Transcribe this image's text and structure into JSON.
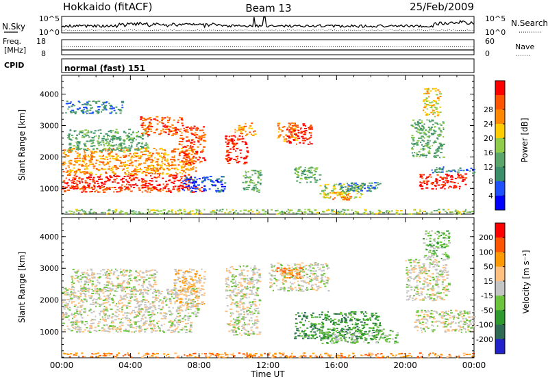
{
  "header": {
    "station": "Hokkaido (fitACF)",
    "beam": "Beam 13",
    "date": "25/Feb/2009"
  },
  "noise_panel": {
    "left_label": "N.Sky",
    "right_label": "N.Search",
    "left_ticks": [
      "10^5",
      "10^0"
    ],
    "right_ticks": [
      "10^5",
      "10^0"
    ],
    "scale": "log"
  },
  "freq_panel": {
    "left_label_1": "Freq.",
    "left_label_2": "[MHz]",
    "left_ticks": [
      "18",
      "8"
    ],
    "right_label": "Nave",
    "right_ticks": [
      "60",
      "0"
    ]
  },
  "cpid_panel": {
    "label": "CPID",
    "value": "normal (fast) 151"
  },
  "chart_data": [
    {
      "type": "heatmap",
      "name": "power",
      "ylabel": "Slant Range [km]",
      "ylim": [
        180,
        4600
      ],
      "xlim": [
        0,
        24
      ],
      "y_ticks": [
        1000,
        2000,
        3000,
        4000
      ],
      "colorbar": {
        "label": "Power [dB]",
        "ticks": [
          "4",
          "8",
          "12",
          "16",
          "20",
          "24",
          "28"
        ],
        "colors": [
          "#0000ff",
          "#1f50ff",
          "#3a8f6a",
          "#5aa66a",
          "#8fcc4a",
          "#ffcc00",
          "#ff8800",
          "#ff5500",
          "#ff0000"
        ]
      },
      "blobs": [
        {
          "t0": 0.0,
          "t1": 7.5,
          "r0": 1000,
          "r1": 1450,
          "c": 8
        },
        {
          "t0": 0.0,
          "t1": 8.2,
          "r0": 900,
          "r1": 1050,
          "c": 7
        },
        {
          "t0": 0.0,
          "t1": 7.8,
          "r0": 1450,
          "r1": 2300,
          "c": 6
        },
        {
          "t0": 0.3,
          "t1": 5.0,
          "r0": 2200,
          "r1": 2900,
          "c": 3
        },
        {
          "t0": 4.5,
          "t1": 7.0,
          "r0": 2700,
          "r1": 3300,
          "c": 7
        },
        {
          "t0": 6.8,
          "t1": 8.3,
          "r0": 1800,
          "r1": 3000,
          "c": 7
        },
        {
          "t0": 0.2,
          "t1": 3.5,
          "r0": 3400,
          "r1": 3800,
          "c": 2
        },
        {
          "t0": 7.0,
          "t1": 9.5,
          "r0": 900,
          "r1": 1400,
          "c": 1
        },
        {
          "t0": 9.5,
          "t1": 10.8,
          "r0": 1800,
          "r1": 2700,
          "c": 8
        },
        {
          "t0": 10.0,
          "t1": 11.2,
          "r0": 2700,
          "r1": 3100,
          "c": 6
        },
        {
          "t0": 10.5,
          "t1": 11.6,
          "r0": 900,
          "r1": 1600,
          "c": 3
        },
        {
          "t0": 13.0,
          "t1": 14.5,
          "r0": 2400,
          "r1": 3100,
          "c": 8
        },
        {
          "t0": 12.5,
          "t1": 13.6,
          "r0": 2500,
          "r1": 3100,
          "c": 6
        },
        {
          "t0": 13.5,
          "t1": 15.0,
          "r0": 1200,
          "r1": 1700,
          "c": 3
        },
        {
          "t0": 15.0,
          "t1": 17.5,
          "r0": 700,
          "r1": 1150,
          "c": 4
        },
        {
          "t0": 16.0,
          "t1": 18.5,
          "r0": 900,
          "r1": 1200,
          "c": 2
        },
        {
          "t0": 15.5,
          "t1": 16.8,
          "r0": 650,
          "r1": 900,
          "c": 6
        },
        {
          "t0": 20.8,
          "t1": 23.5,
          "r0": 1000,
          "r1": 1500,
          "c": 8
        },
        {
          "t0": 21.5,
          "t1": 24.0,
          "r0": 1500,
          "r1": 1700,
          "c": 2
        },
        {
          "t0": 20.3,
          "t1": 22.2,
          "r0": 2000,
          "r1": 3200,
          "c": 3
        },
        {
          "t0": 21.0,
          "t1": 22.0,
          "r0": 3300,
          "r1": 4200,
          "c": 5
        },
        {
          "t0": 0.0,
          "t1": 24.0,
          "r0": 200,
          "r1": 350,
          "c": 4
        }
      ]
    },
    {
      "type": "heatmap",
      "name": "velocity",
      "ylabel": "Slant Range [km]",
      "xlabel": "Time UT",
      "ylim": [
        180,
        4600
      ],
      "xlim": [
        0,
        24
      ],
      "y_ticks": [
        1000,
        2000,
        3000,
        4000
      ],
      "x_ticks": [
        "00:00",
        "04:00",
        "08:00",
        "12:00",
        "16:00",
        "20:00",
        "00:00"
      ],
      "colorbar": {
        "label": "Velocity [m s⁻¹]",
        "ticks": [
          "200",
          "100",
          "50",
          "15",
          "-15",
          "-50",
          "-100",
          "-200"
        ],
        "colors": [
          "#2222cc",
          "#2f6a55",
          "#2e9a2e",
          "#6cc43c",
          "#c4c4c4",
          "#ffc080",
          "#ff9900",
          "#ff5500",
          "#ff0000"
        ]
      },
      "blobs": [
        {
          "t0": 0.0,
          "t1": 7.5,
          "r0": 1000,
          "r1": 1500,
          "c": 4
        },
        {
          "t0": 0.0,
          "t1": 8.0,
          "r0": 1500,
          "r1": 2400,
          "c": 4
        },
        {
          "t0": 0.5,
          "t1": 5.5,
          "r0": 2300,
          "r1": 3000,
          "c": 4
        },
        {
          "t0": 6.5,
          "t1": 8.3,
          "r0": 1800,
          "r1": 3000,
          "c": 5
        },
        {
          "t0": 9.5,
          "t1": 11.5,
          "r0": 900,
          "r1": 3100,
          "c": 4
        },
        {
          "t0": 12.0,
          "t1": 15.5,
          "r0": 2300,
          "r1": 3200,
          "c": 4
        },
        {
          "t0": 12.5,
          "t1": 14.0,
          "r0": 2700,
          "r1": 3100,
          "c": 6
        },
        {
          "t0": 13.5,
          "t1": 18.5,
          "r0": 800,
          "r1": 1650,
          "c": 2
        },
        {
          "t0": 15.0,
          "t1": 19.5,
          "r0": 650,
          "r1": 1100,
          "c": 3
        },
        {
          "t0": 20.5,
          "t1": 24.0,
          "r0": 1000,
          "r1": 1700,
          "c": 4
        },
        {
          "t0": 20.0,
          "t1": 22.5,
          "r0": 2000,
          "r1": 3300,
          "c": 4
        },
        {
          "t0": 21.0,
          "t1": 22.5,
          "r0": 3300,
          "r1": 4200,
          "c": 3
        },
        {
          "t0": 0.0,
          "t1": 24.0,
          "r0": 200,
          "r1": 350,
          "c": 6
        }
      ]
    }
  ]
}
